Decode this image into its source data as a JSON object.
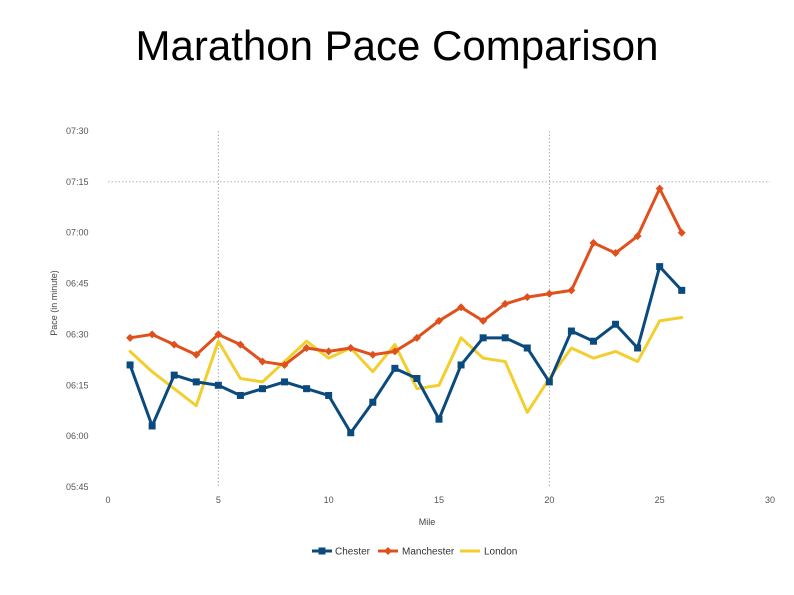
{
  "slide": {
    "title": "Marathon Pace Comparison"
  },
  "chart_data": {
    "type": "line",
    "title": "Marathon Pace Comparison",
    "xlabel": "Mile",
    "ylabel": "Pace (in minute)",
    "xlim": [
      0,
      30
    ],
    "ylim": [
      345,
      450
    ],
    "x_ticks": [
      0,
      5,
      10,
      15,
      20,
      25,
      30
    ],
    "y_ticks": [
      {
        "value": 345,
        "label": "05:45"
      },
      {
        "value": 360,
        "label": "06:00"
      },
      {
        "value": 375,
        "label": "06:15"
      },
      {
        "value": 390,
        "label": "06:30"
      },
      {
        "value": 405,
        "label": "06:45"
      },
      {
        "value": 420,
        "label": "07:00"
      },
      {
        "value": 435,
        "label": "07:15"
      },
      {
        "value": 450,
        "label": "07:30"
      }
    ],
    "grid": {
      "x": [
        5,
        20
      ],
      "y": [
        435
      ]
    },
    "legend_position": "bottom",
    "series": [
      {
        "name": "Chester",
        "color": "#0b4a7d",
        "marker": "square",
        "x": [
          1,
          2,
          3,
          4,
          5,
          6,
          7,
          8,
          9,
          10,
          11,
          12,
          13,
          14,
          15,
          16,
          17,
          18,
          19,
          20,
          21,
          22,
          23,
          24,
          25,
          26
        ],
        "values": [
          381,
          363,
          378,
          376,
          375,
          372,
          374,
          376,
          374,
          372,
          361,
          370,
          380,
          377,
          365,
          381,
          389,
          389,
          386,
          376,
          391,
          388,
          393,
          386,
          410,
          403
        ]
      },
      {
        "name": "Manchester",
        "color": "#e0501d",
        "marker": "diamond",
        "x": [
          1,
          2,
          3,
          4,
          5,
          6,
          7,
          8,
          9,
          10,
          11,
          12,
          13,
          14,
          15,
          16,
          17,
          18,
          19,
          20,
          21,
          22,
          23,
          24,
          25,
          26
        ],
        "values": [
          389,
          390,
          387,
          384,
          390,
          387,
          382,
          381,
          386,
          385,
          386,
          384,
          385,
          389,
          394,
          398,
          394,
          399,
          401,
          402,
          403,
          417,
          414,
          419,
          433,
          420
        ]
      },
      {
        "name": "London",
        "color": "#f2cf2f",
        "marker": "none",
        "x": [
          1,
          2,
          3,
          4,
          5,
          6,
          7,
          8,
          9,
          10,
          11,
          12,
          13,
          14,
          15,
          16,
          17,
          18,
          19,
          20,
          21,
          22,
          23,
          24,
          25,
          26
        ],
        "values": [
          385,
          379,
          374,
          369,
          388,
          377,
          376,
          382,
          388,
          383,
          386,
          379,
          387,
          374,
          375,
          389,
          383,
          382,
          367,
          377,
          386,
          383,
          385,
          382,
          394,
          395
        ]
      }
    ]
  }
}
